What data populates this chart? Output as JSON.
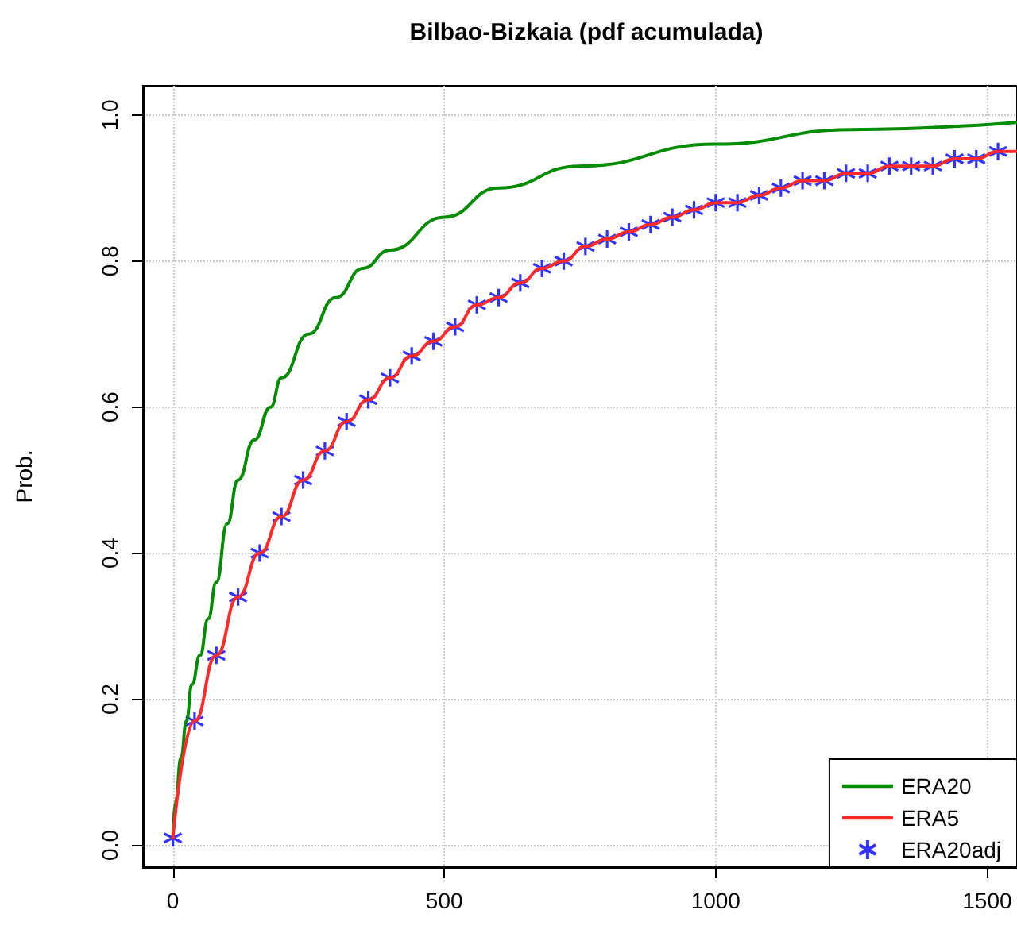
{
  "chart_data": {
    "type": "line",
    "title": "Bilbao-Bizkaia (pdf acumulada)",
    "ylabel": "Prob.",
    "xlim": [
      -55,
      1555
    ],
    "xticks": [
      0,
      500,
      1000,
      1500
    ],
    "ylim": [
      -0.03,
      1.04
    ],
    "yticks": [
      {
        "value": 0,
        "label": "0.0"
      },
      {
        "value": 0.2,
        "label": "0.2"
      },
      {
        "value": 0.4,
        "label": "0.4"
      },
      {
        "value": 0.6,
        "label": "0.6"
      },
      {
        "value": 0.8,
        "label": "0.8"
      },
      {
        "value": 1,
        "label": "1.0"
      }
    ],
    "grid": true,
    "legend": "bottom right",
    "series": [
      {
        "name": "ERA20",
        "color": "#008b00",
        "line_style": "solid",
        "marker": "none",
        "x": [
          0,
          5,
          15,
          25,
          35,
          50,
          65,
          80,
          100,
          120,
          150,
          180,
          200,
          250,
          300,
          350,
          400,
          500,
          600,
          750,
          1000,
          1250,
          1555
        ],
        "values": [
          0.01,
          0.06,
          0.12,
          0.17,
          0.22,
          0.26,
          0.31,
          0.36,
          0.44,
          0.5,
          0.555,
          0.6,
          0.64,
          0.7,
          0.75,
          0.79,
          0.815,
          0.86,
          0.9,
          0.93,
          0.96,
          0.98,
          0.99
        ]
      },
      {
        "name": "ERA5",
        "color": "#ff2a2a",
        "line_style": "solid",
        "marker": "none",
        "x": [
          0,
          40,
          80,
          120,
          160,
          200,
          240,
          280,
          320,
          360,
          400,
          440,
          480,
          520,
          560,
          600,
          640,
          680,
          720,
          760,
          800,
          840,
          880,
          920,
          960,
          1000,
          1040,
          1080,
          1120,
          1160,
          1200,
          1240,
          1280,
          1320,
          1360,
          1400,
          1440,
          1480,
          1520,
          1555
        ],
        "values": [
          0.01,
          0.17,
          0.26,
          0.34,
          0.4,
          0.45,
          0.5,
          0.54,
          0.58,
          0.61,
          0.64,
          0.67,
          0.69,
          0.71,
          0.74,
          0.75,
          0.77,
          0.79,
          0.8,
          0.82,
          0.83,
          0.84,
          0.85,
          0.86,
          0.87,
          0.88,
          0.88,
          0.89,
          0.9,
          0.91,
          0.91,
          0.92,
          0.92,
          0.93,
          0.93,
          0.93,
          0.94,
          0.94,
          0.95,
          0.95
        ]
      },
      {
        "name": "ERA20adj",
        "type": "scatter",
        "color": "#0000ff",
        "marker": "cross",
        "x": [
          0,
          40,
          80,
          120,
          160,
          200,
          240,
          280,
          320,
          360,
          400,
          440,
          480,
          520,
          560,
          600,
          640,
          680,
          720,
          760,
          800,
          840,
          880,
          920,
          960,
          1000,
          1040,
          1080,
          1120,
          1160,
          1200,
          1240,
          1280,
          1320,
          1360,
          1400,
          1440,
          1480,
          1520
        ],
        "values": [
          0.01,
          0.17,
          0.26,
          0.34,
          0.4,
          0.45,
          0.5,
          0.54,
          0.58,
          0.61,
          0.64,
          0.67,
          0.69,
          0.71,
          0.74,
          0.75,
          0.77,
          0.79,
          0.8,
          0.82,
          0.83,
          0.84,
          0.85,
          0.86,
          0.87,
          0.88,
          0.88,
          0.89,
          0.9,
          0.91,
          0.91,
          0.92,
          0.92,
          0.93,
          0.93,
          0.93,
          0.94,
          0.94,
          0.95
        ]
      }
    ]
  }
}
